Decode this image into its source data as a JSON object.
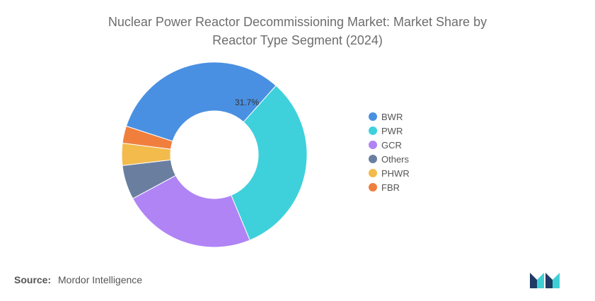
{
  "title_lines": [
    "Nuclear Power Reactor Decommissioning Market: Market Share by",
    "Reactor Type Segment (2024)"
  ],
  "chart_data": {
    "type": "pie",
    "variant": "donut",
    "title": "Nuclear Power Reactor Decommissioning Market: Market Share by Reactor Type Segment (2024)",
    "categories": [
      "BWR",
      "PWR",
      "GCR",
      "Others",
      "PHWR",
      "FBR"
    ],
    "values": [
      31.7,
      32.3,
      23.5,
      6.0,
      3.9,
      3.0
    ],
    "colors": [
      "#4a90e2",
      "#3ed1dc",
      "#b084f5",
      "#6a7fa0",
      "#f2bb4c",
      "#f07f3e"
    ],
    "data_labels": [
      {
        "category": "BWR",
        "text": "31.7%"
      }
    ],
    "legend_position": "right"
  },
  "source": {
    "label": "Source:",
    "text": "Mordor Intelligence"
  },
  "logo": {
    "icon": "mordor-intelligence-logo",
    "colors": [
      "#1f3b63",
      "#3ecfd5"
    ]
  }
}
